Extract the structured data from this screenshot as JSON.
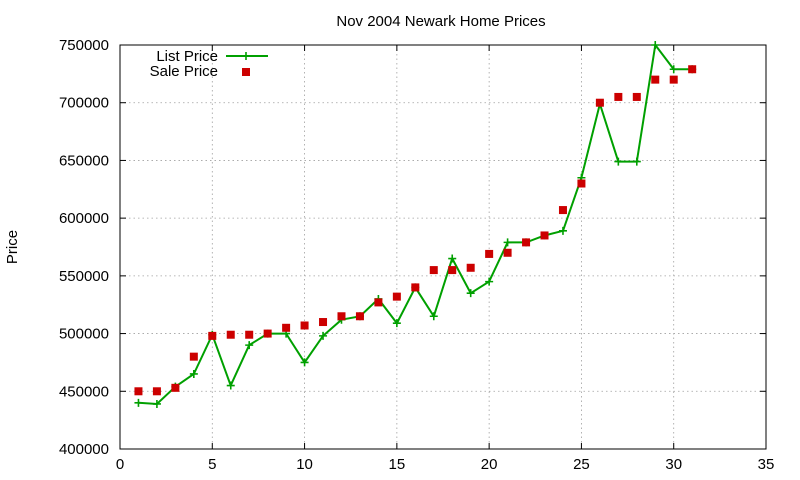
{
  "chart_data": {
    "type": "line",
    "title": "Nov 2004 Newark Home Prices",
    "xlabel": "",
    "ylabel": "Price",
    "xlim": [
      0,
      35
    ],
    "ylim": [
      400000,
      750000
    ],
    "x_ticks": [
      0,
      5,
      10,
      15,
      20,
      25,
      30,
      35
    ],
    "y_ticks": [
      400000,
      450000,
      500000,
      550000,
      600000,
      650000,
      700000,
      750000
    ],
    "grid": true,
    "legend_position": "top-left",
    "series": [
      {
        "name": "List Price",
        "style": "line-plus",
        "color": "#00a000",
        "x": [
          1,
          2,
          3,
          4,
          5,
          6,
          7,
          8,
          9,
          10,
          11,
          12,
          13,
          14,
          15,
          16,
          17,
          18,
          19,
          20,
          21,
          22,
          23,
          24,
          25,
          26,
          27,
          28,
          29,
          30,
          31
        ],
        "values": [
          440000,
          439000,
          454000,
          465000,
          499000,
          455000,
          490000,
          500000,
          500000,
          475000,
          498000,
          512000,
          515000,
          530000,
          509000,
          540000,
          515000,
          565000,
          535000,
          545000,
          579000,
          579000,
          585000,
          589000,
          635000,
          699000,
          649000,
          649000,
          750000,
          729000,
          729000
        ]
      },
      {
        "name": "Sale Price",
        "style": "square",
        "color": "#cc0000",
        "x": [
          1,
          2,
          3,
          4,
          5,
          6,
          7,
          8,
          9,
          10,
          11,
          12,
          13,
          14,
          15,
          16,
          17,
          18,
          19,
          20,
          21,
          22,
          23,
          24,
          25,
          26,
          27,
          28,
          29,
          30,
          31
        ],
        "values": [
          450000,
          450000,
          453000,
          480000,
          498000,
          499000,
          499000,
          500000,
          505000,
          507000,
          510000,
          515000,
          515000,
          527000,
          532000,
          540000,
          555000,
          555000,
          557000,
          569000,
          570000,
          579000,
          585000,
          607000,
          630000,
          700000,
          705000,
          705000,
          720000,
          720000,
          729000
        ]
      }
    ]
  }
}
